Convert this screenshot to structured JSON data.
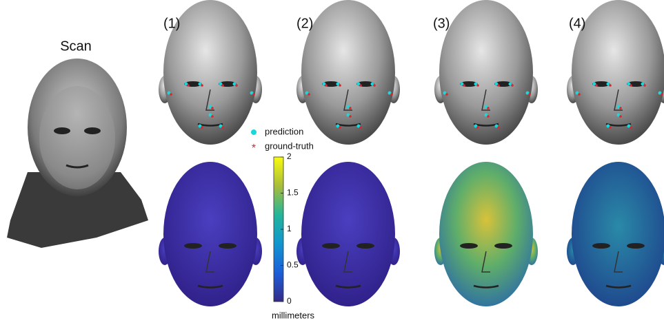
{
  "scan_label": "Scan",
  "panels": [
    {
      "label": "(1)"
    },
    {
      "label": "(2)"
    },
    {
      "label": "(3)"
    },
    {
      "label": "(4)"
    }
  ],
  "legend": {
    "items": [
      {
        "name": "prediction",
        "color": "#19d8dc",
        "marker": "dot"
      },
      {
        "name": "ground-truth",
        "color": "#d8262e",
        "marker": "star"
      }
    ]
  },
  "colorbar": {
    "lim": [
      0,
      2
    ],
    "ticks": [
      0,
      0.5,
      1,
      1.5,
      2
    ],
    "label": "millimeters"
  }
}
